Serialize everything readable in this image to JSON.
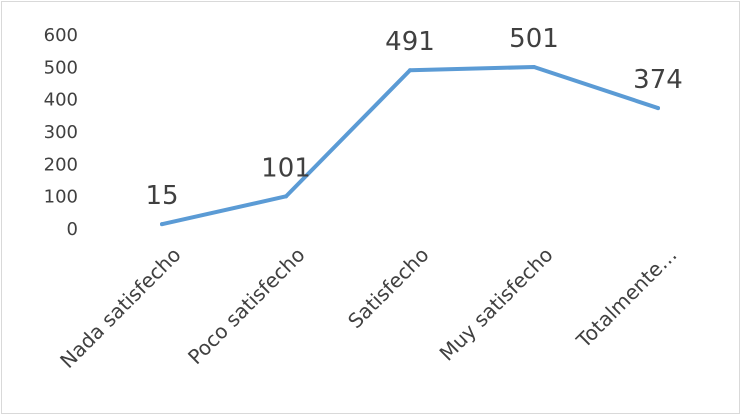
{
  "chart_data": {
    "type": "line",
    "categories": [
      "Nada satisfecho",
      "Poco satisfecho",
      "Satisfecho",
      "Muy satisfecho",
      "Totalmente…"
    ],
    "series": [
      {
        "values": [
          15,
          101,
          491,
          501,
          374
        ]
      }
    ],
    "data_labels": [
      "15",
      "101",
      "491",
      "501",
      "374"
    ],
    "y_ticks": [
      "0",
      "100",
      "200",
      "300",
      "400",
      "500",
      "600"
    ],
    "ylim": [
      0,
      600
    ],
    "grid": false,
    "legend": "none",
    "line_color": "#5b9bd5"
  }
}
